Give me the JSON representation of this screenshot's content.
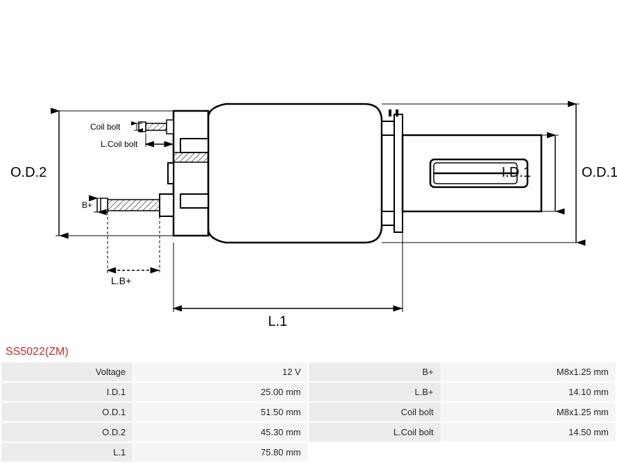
{
  "part_number": "SS5022(ZM)",
  "diagram": {
    "type": "technical-drawing",
    "stroke_color": "#000000",
    "stroke_width": 2,
    "hatch_stroke_width": 1,
    "background": "#ffffff",
    "labels": {
      "od2": "O.D.2",
      "od1": "O.D.1",
      "id1": "I.D.1",
      "l1": "L.1",
      "lb_plus": "L.B+",
      "b_plus": "B+",
      "coil_bolt": "Coil bolt",
      "l_coil_bolt": "L.Coil bolt"
    }
  },
  "specs": {
    "rows": [
      {
        "label_l": "Voltage",
        "value_l": "12 V",
        "label_r": "B+",
        "value_r": "M8x1.25 mm"
      },
      {
        "label_l": "I.D.1",
        "value_l": "25.00 mm",
        "label_r": "L.B+",
        "value_r": "14.10 mm"
      },
      {
        "label_l": "O.D.1",
        "value_l": "51.50 mm",
        "label_r": "Coil bolt",
        "value_r": "M8x1.25 mm"
      },
      {
        "label_l": "O.D.2",
        "value_l": "45.30 mm",
        "label_r": "L.Coil bolt",
        "value_r": "14.50 mm"
      },
      {
        "label_l": "L.1",
        "value_l": "75.80 mm",
        "label_r": "",
        "value_r": ""
      }
    ],
    "label_bg": "#ececec",
    "value_bg": "#f5f5f5",
    "font_size": 13,
    "text_color": "#222222"
  }
}
